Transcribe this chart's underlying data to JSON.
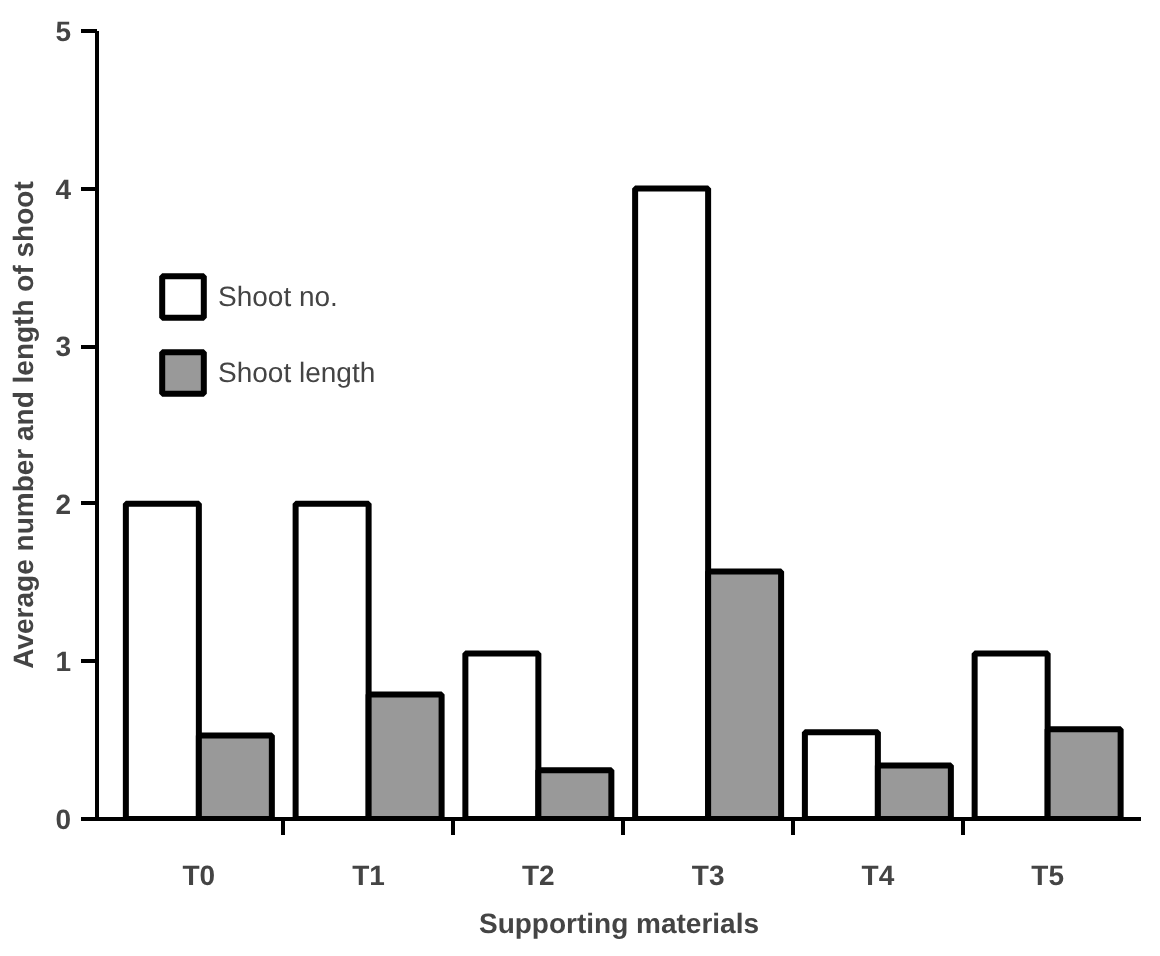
{
  "chart_data": {
    "type": "bar",
    "xlabel": "Supporting materials",
    "ylabel": "Average number and length of shoot",
    "categories": [
      "T0",
      "T1",
      "T2",
      "T3",
      "T4",
      "T5"
    ],
    "series": [
      {
        "name": "Shoot no.",
        "color": "#ffffff",
        "values": [
          2.0,
          2.0,
          1.05,
          4.0,
          0.55,
          1.05
        ]
      },
      {
        "name": "Shoot length",
        "color": "#999999",
        "values": [
          0.53,
          0.79,
          0.31,
          1.57,
          0.34,
          0.57
        ]
      }
    ],
    "ylim": [
      0,
      5
    ],
    "yticks": [
      0,
      1,
      2,
      3,
      4,
      5
    ],
    "grid": false,
    "legend": "top left"
  }
}
